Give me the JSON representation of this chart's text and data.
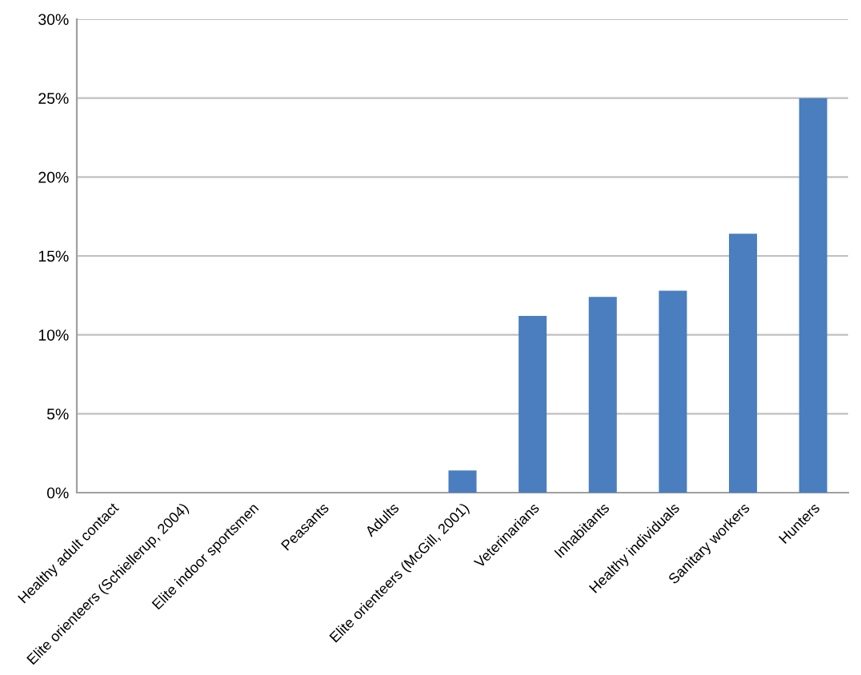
{
  "chart_data": {
    "type": "bar",
    "categories": [
      "Healthy adult contact",
      "Elite orienteers (Schiellerup, 2004)",
      "Elite indoor sportsmen",
      "Peasants",
      "Adults",
      "Elite orienteers (McGill, 2001)",
      "Veterinarians",
      "Inhabitants",
      "Healthy individuals",
      "Sanitary workers",
      "Hunters"
    ],
    "values": [
      0,
      0,
      0,
      0,
      0,
      1.4,
      11.2,
      12.4,
      12.8,
      16.4,
      25
    ],
    "color": "#4a7ebf",
    "ylim": [
      0,
      30
    ],
    "yticks": [
      {
        "value": 0,
        "label": "0%"
      },
      {
        "value": 5,
        "label": "5%"
      },
      {
        "value": 10,
        "label": "10%"
      },
      {
        "value": 15,
        "label": "15%"
      },
      {
        "value": 20,
        "label": "20%"
      },
      {
        "value": 25,
        "label": "25%"
      },
      {
        "value": 30,
        "label": "30%"
      }
    ],
    "grid": "y",
    "legend": false
  }
}
